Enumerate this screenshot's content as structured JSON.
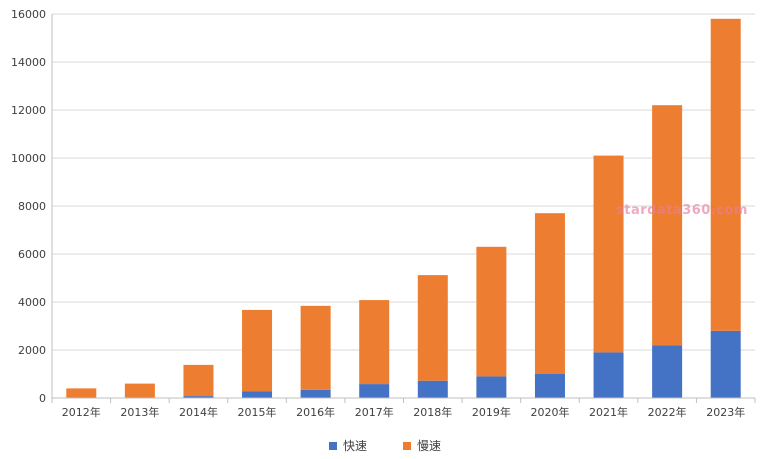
{
  "chart_data": {
    "type": "bar",
    "stacked": true,
    "categories": [
      "2012年",
      "2013年",
      "2014年",
      "2015年",
      "2016年",
      "2017年",
      "2018年",
      "2019年",
      "2020年",
      "2021年",
      "2022年",
      "2023年"
    ],
    "series": [
      {
        "name": "快速",
        "color": "#4472c4",
        "values": [
          0,
          0,
          80,
          270,
          340,
          580,
          720,
          900,
          1000,
          1900,
          2200,
          2800
        ]
      },
      {
        "name": "慢速",
        "color": "#ed7d31",
        "values": [
          400,
          600,
          1300,
          3400,
          3500,
          3500,
          4400,
          5400,
          6700,
          8200,
          10000,
          13000
        ]
      }
    ],
    "yticks": [
      0,
      2000,
      4000,
      6000,
      8000,
      10000,
      12000,
      14000,
      16000
    ],
    "ylim": [
      0,
      16000
    ],
    "grid": true,
    "legend": "bottom",
    "title": "",
    "xlabel": "",
    "ylabel": ""
  },
  "watermark": "stardata360.com"
}
